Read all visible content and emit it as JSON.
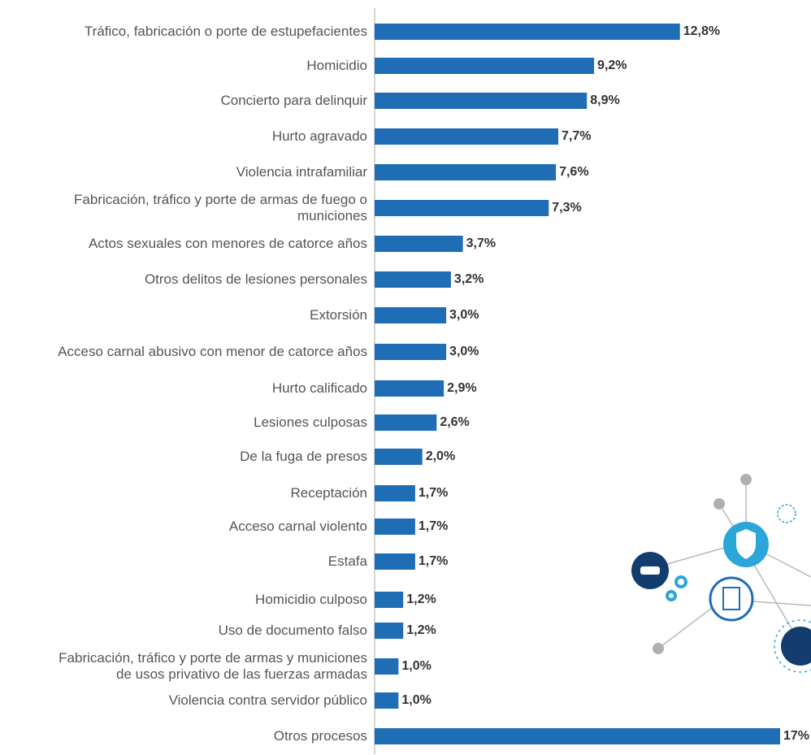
{
  "chart_data": {
    "type": "bar",
    "orientation": "horizontal",
    "color": "#1f6db5",
    "categories": [
      "Tráfico, fabricación o porte de estupefacientes",
      "Homicidio",
      "Concierto para delinquir",
      "Hurto agravado",
      "Violencia intrafamiliar",
      "Fabricación, tráfico y porte de armas de fuego o\nmuniciones",
      "Actos sexuales con menores de catorce años",
      "Otros delitos de lesiones personales",
      "Extorsión",
      "Acceso carnal abusivo con menor de catorce años",
      "Hurto calificado",
      "Lesiones culposas",
      "De la fuga de presos",
      "Receptación",
      "Acceso carnal violento",
      "Estafa",
      "Homicidio culposo",
      "Uso de documento falso",
      "Fabricación, tráfico y porte de armas y municiones\nde usos privativo de las fuerzas armadas",
      "Violencia contra servidor público",
      "Otros procesos"
    ],
    "values": [
      12.8,
      9.2,
      8.9,
      7.7,
      7.6,
      7.3,
      3.7,
      3.2,
      3.0,
      3.0,
      2.9,
      2.6,
      2.0,
      1.7,
      1.7,
      1.7,
      1.2,
      1.2,
      1.0,
      1.0,
      17
    ],
    "value_labels": [
      "12,8%",
      "9,2%",
      "8,9%",
      "7,7%",
      "7,6%",
      "7,3%",
      "3,7%",
      "3,2%",
      "3,0%",
      "3,0%",
      "2,9%",
      "2,6%",
      "2,0%",
      "1,7%",
      "1,7%",
      "1,7%",
      "1,2%",
      "1,2%",
      "1,0%",
      "1,0%",
      "17%"
    ]
  }
}
